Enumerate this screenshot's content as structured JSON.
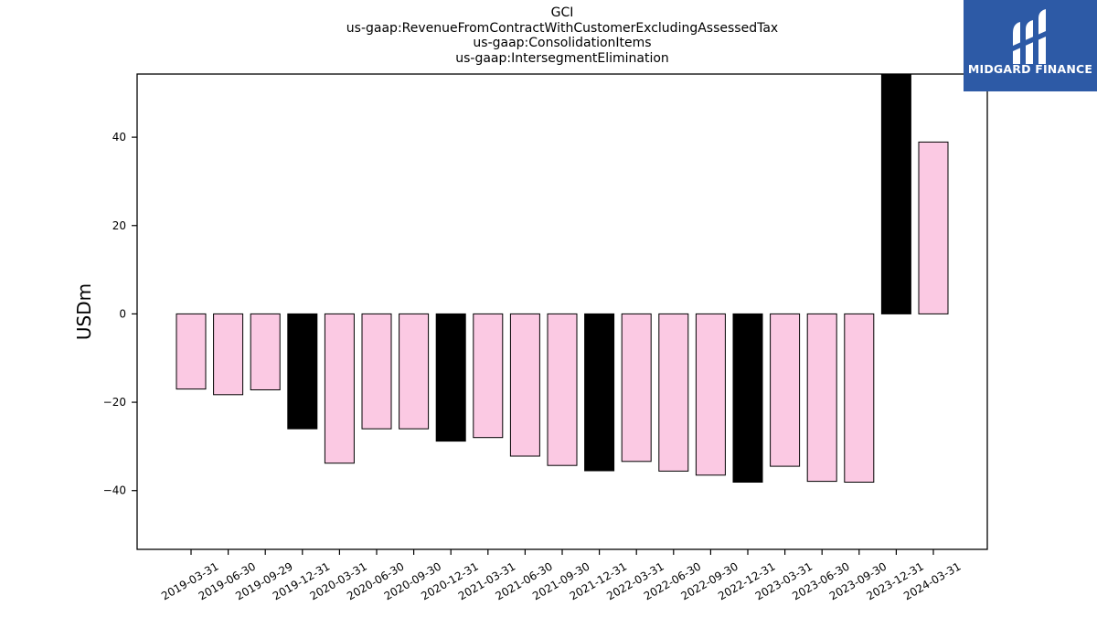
{
  "title_lines": [
    "GCI",
    "us-gaap:RevenueFromContractWithCustomerExcludingAssessedTax",
    "us-gaap:ConsolidationItems",
    "us-gaap:IntersegmentElimination"
  ],
  "logo": {
    "text": "MIDGARD FINANCE",
    "color": "#2d5aa6"
  },
  "colors": {
    "quarter_bar": "#fbc9e3",
    "year_end_bar": "#000000",
    "edge": "#000000"
  },
  "chart_data": {
    "type": "bar",
    "categories": [
      "2019-03-31",
      "2019-06-30",
      "2019-09-29",
      "2019-12-31",
      "2020-03-31",
      "2020-06-30",
      "2020-09-30",
      "2020-12-31",
      "2021-03-31",
      "2021-06-30",
      "2021-09-30",
      "2021-12-31",
      "2022-03-31",
      "2022-06-30",
      "2022-09-30",
      "2022-12-31",
      "2023-03-31",
      "2023-06-30",
      "2023-09-30",
      "2023-12-31",
      "2024-03-31"
    ],
    "values": [
      -17.0,
      -18.3,
      -17.2,
      -26.0,
      -33.8,
      -26.0,
      -26.0,
      -28.8,
      -28.0,
      -32.2,
      -34.3,
      -35.5,
      -33.4,
      -35.6,
      -36.5,
      -38.1,
      -34.5,
      -37.9,
      -38.1,
      55.0,
      38.9
    ],
    "year_end": [
      false,
      false,
      false,
      true,
      false,
      false,
      false,
      true,
      false,
      false,
      false,
      true,
      false,
      false,
      false,
      true,
      false,
      false,
      false,
      true,
      false
    ],
    "ylabel": "USDm",
    "ylim": [
      -53.3,
      54.3
    ],
    "yticks": [
      -40,
      -20,
      0,
      20,
      40
    ],
    "ytick_labels": [
      "−40",
      "−20",
      "0",
      "20",
      "40"
    ],
    "grid": false
  }
}
